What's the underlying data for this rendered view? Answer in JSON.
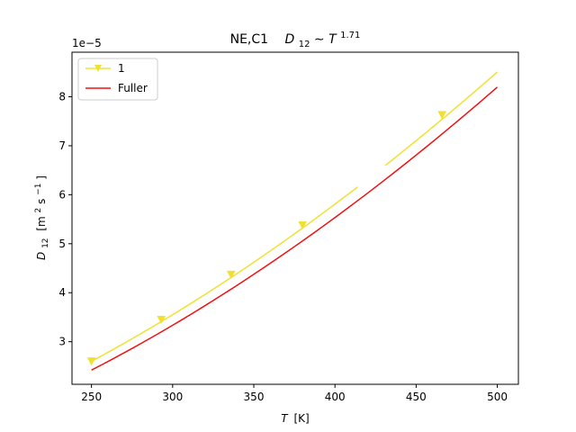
{
  "chart_data": {
    "type": "line",
    "title": {
      "prefix": "NE,C1",
      "var": "D",
      "var_sub": "12",
      "rel": "∼",
      "rhs": "T",
      "rhs_sup": "1.71"
    },
    "xlabel": {
      "var": "T",
      "unit": "[K]"
    },
    "ylabel": {
      "var": "D",
      "sub": "12",
      "unit_open": "[m",
      "unit_sup1": "2",
      "unit_mid": "s",
      "unit_sup2": "−1",
      "unit_close": "]"
    },
    "y_offset_label": "1e−5",
    "xlim": [
      238,
      513
    ],
    "ylim": [
      2.13,
      8.91
    ],
    "y_scale_factor": 1e-05,
    "xticks": [
      250,
      300,
      350,
      400,
      450,
      500
    ],
    "xtick_labels": [
      "250",
      "300",
      "350",
      "400",
      "450",
      "500"
    ],
    "yticks": [
      3,
      4,
      5,
      6,
      7,
      8
    ],
    "ytick_labels": [
      "3",
      "4",
      "5",
      "6",
      "7",
      "8"
    ],
    "grid": false,
    "legend_position": "top-left",
    "series": [
      {
        "name": "1",
        "color": "#f0e130",
        "marker": "triangle-down",
        "segments": [
          {
            "x": [
              250,
              414
            ],
            "y_model": {
              "a": 2.6,
              "x0": 250,
              "exp": 1.71
            }
          },
          {
            "x": [
              431,
              500
            ],
            "y_model": {
              "a": 2.6,
              "x0": 250,
              "exp": 1.71
            }
          }
        ],
        "markers": [
          {
            "x": 250,
            "y": 2.6
          },
          {
            "x": 293,
            "y": 3.45
          },
          {
            "x": 336,
            "y": 4.37
          },
          {
            "x": 380,
            "y": 5.38
          },
          {
            "x": 466,
            "y": 7.63
          }
        ]
      },
      {
        "name": "Fuller",
        "color": "#ee1111",
        "marker": "none",
        "segments": [
          {
            "x": [
              250,
              500
            ],
            "y_model": {
              "a": 2.42,
              "x0": 250,
              "exp": 1.76
            }
          }
        ],
        "markers": []
      }
    ]
  }
}
